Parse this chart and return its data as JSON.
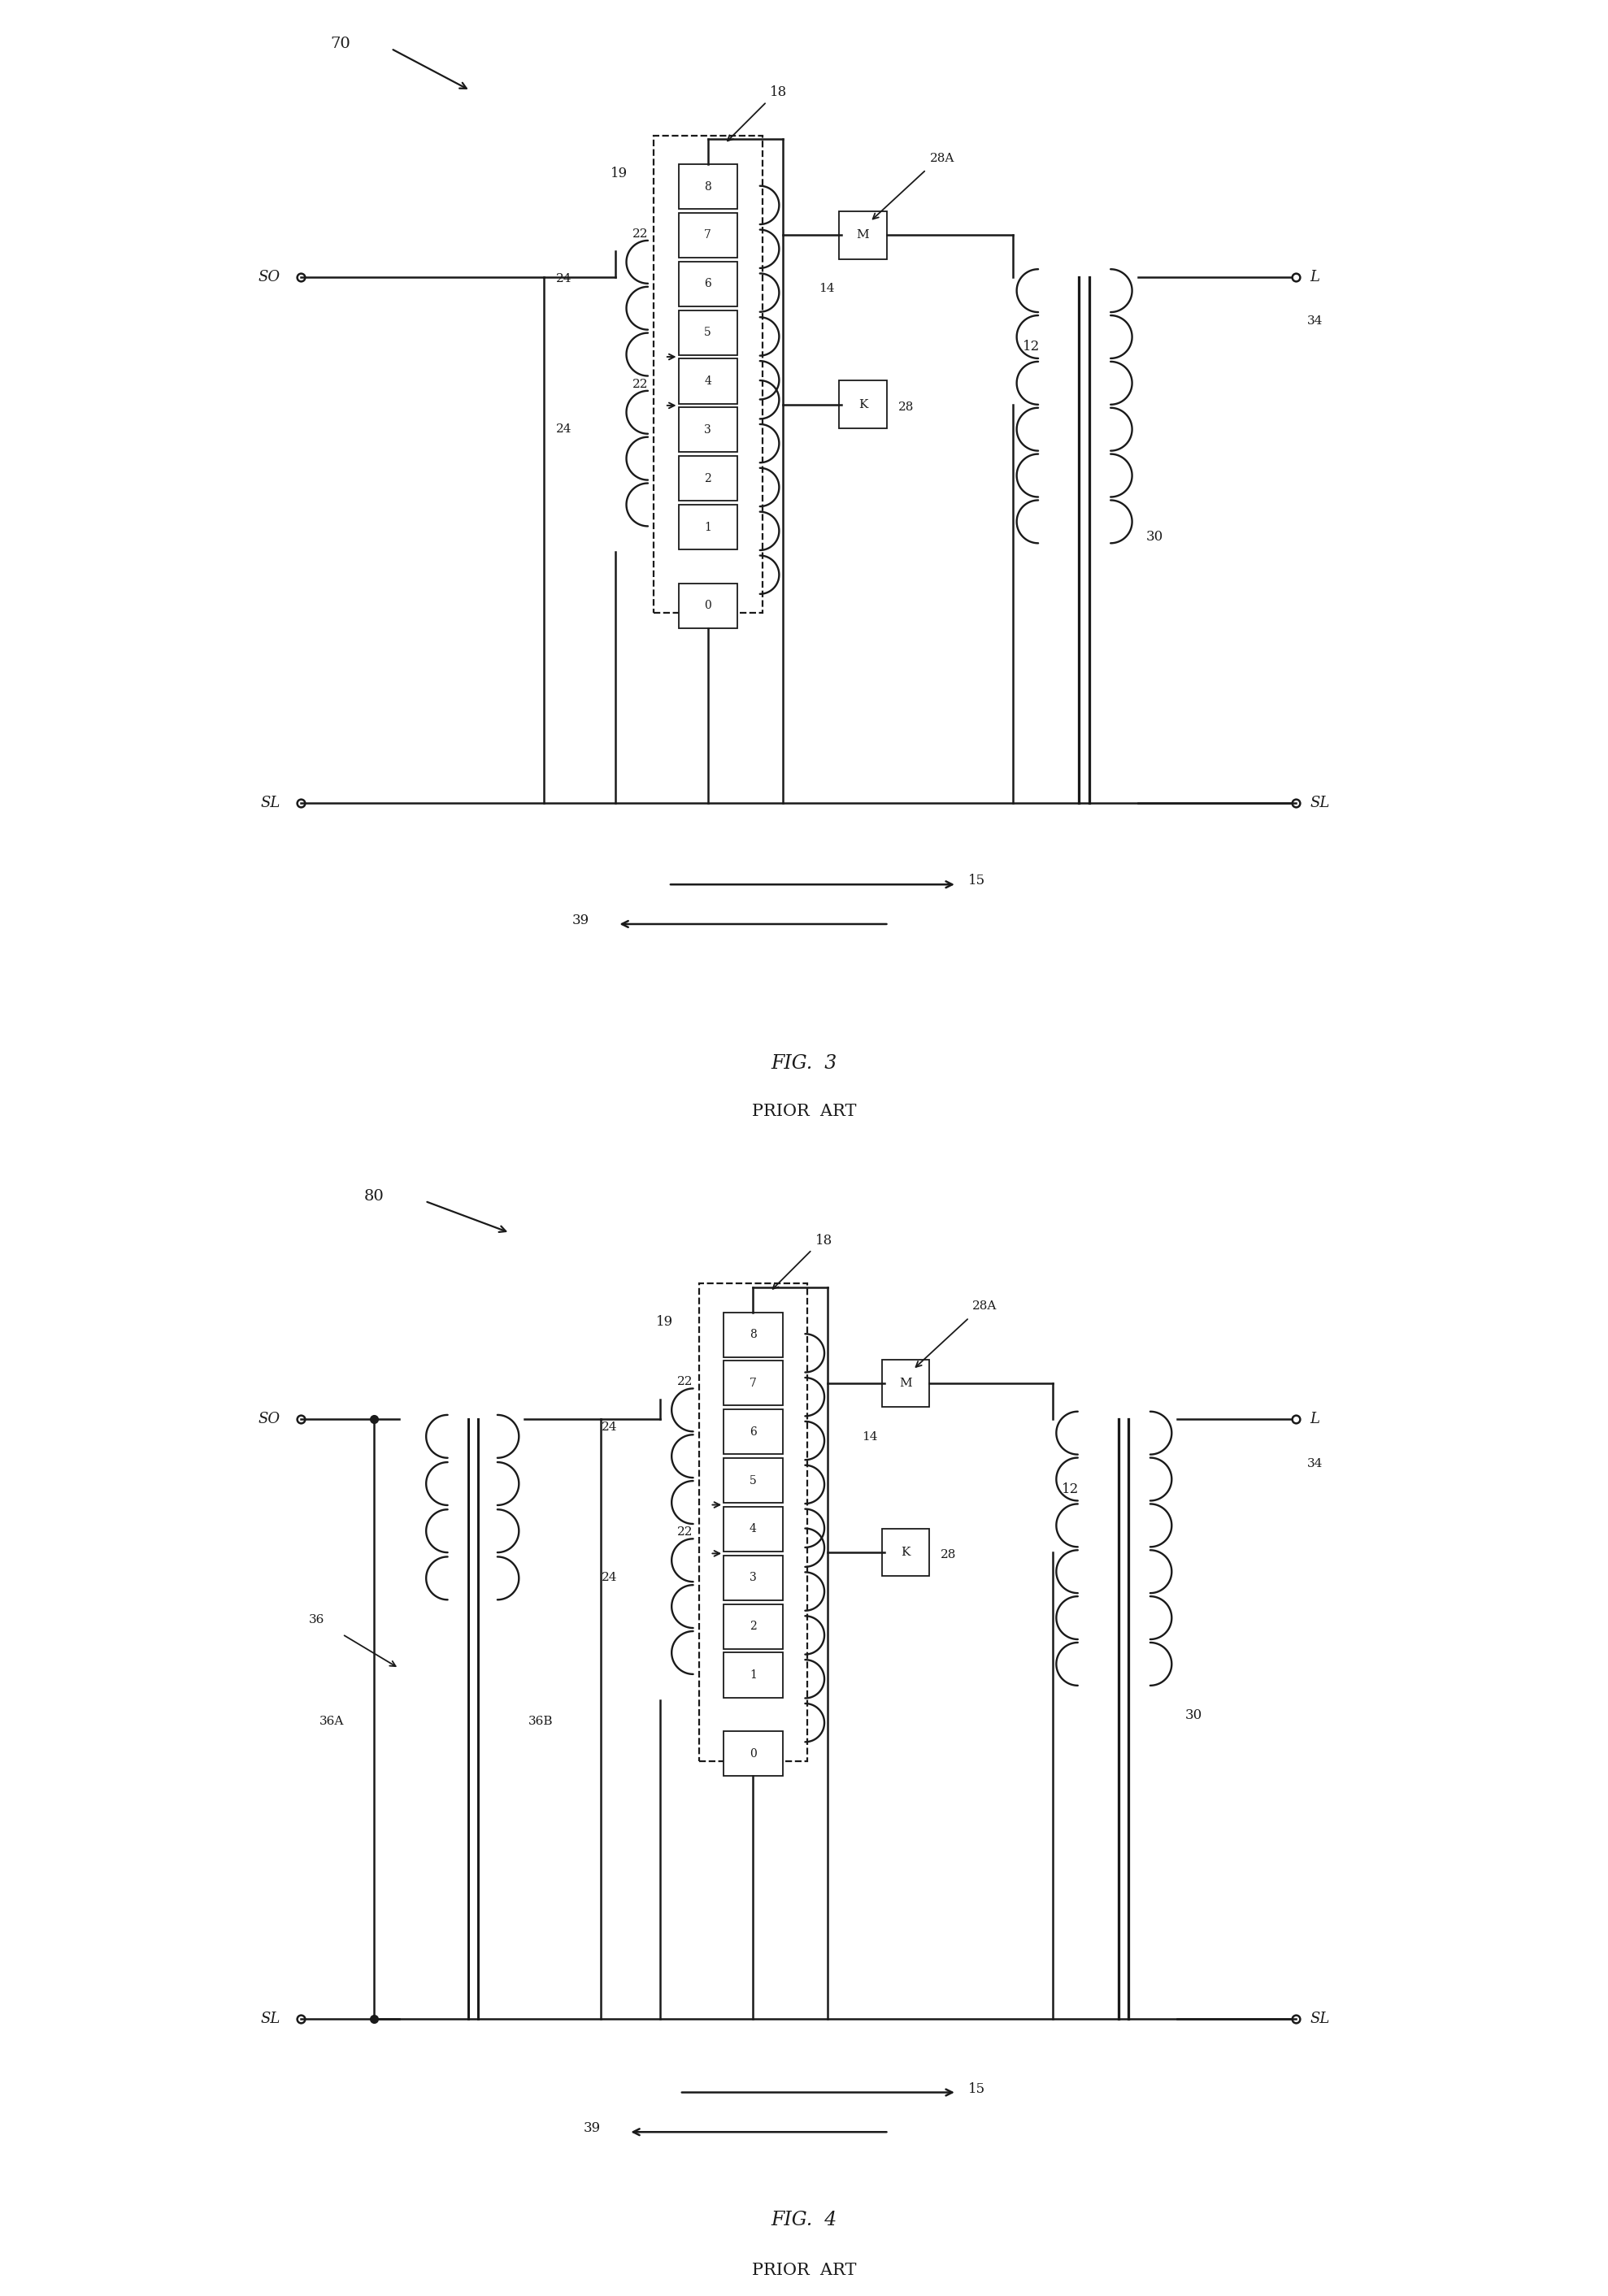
{
  "bg_color": "#ffffff",
  "line_color": "#1a1a1a",
  "fig_width": 19.78,
  "fig_height": 28.25,
  "fig3": {
    "label": "70",
    "title": "FIG.  3",
    "subtitle": "PRIOR  ART",
    "so_label": "SO",
    "sl_left_label": "SL",
    "sl_right_label": "SL",
    "l_label": "L",
    "label_18": "18",
    "label_19": "19",
    "label_22_top": "22",
    "label_22_bot": "22",
    "label_24_top": "24",
    "label_24_bot": "24",
    "label_28A": "28A",
    "label_14": "14",
    "label_28": "28",
    "label_12": "12",
    "label_30": "30",
    "label_34": "34",
    "label_15": "15",
    "label_39": "39",
    "tap_labels": [
      "8",
      "7",
      "6",
      "5",
      "4",
      "3",
      "2",
      "1"
    ],
    "tap0_label": "0",
    "m_label": "M",
    "k_label": "K"
  },
  "fig4": {
    "label": "80",
    "title": "FIG.  4",
    "subtitle": "PRIOR  ART",
    "so_label": "SO",
    "sl_left_label": "SL",
    "sl_right_label": "SL",
    "l_label": "L",
    "label_18": "18",
    "label_19": "19",
    "label_22_top": "22",
    "label_22_bot": "22",
    "label_24_top": "24",
    "label_24_bot": "24",
    "label_28A": "28A",
    "label_14": "14",
    "label_28": "28",
    "label_12": "12",
    "label_30": "30",
    "label_34": "34",
    "label_15": "15",
    "label_39": "39",
    "label_36": "36",
    "label_36A": "36A",
    "label_36B": "36B",
    "tap_labels": [
      "8",
      "7",
      "6",
      "5",
      "4",
      "3",
      "2",
      "1"
    ],
    "tap0_label": "0",
    "m_label": "M",
    "k_label": "K"
  }
}
